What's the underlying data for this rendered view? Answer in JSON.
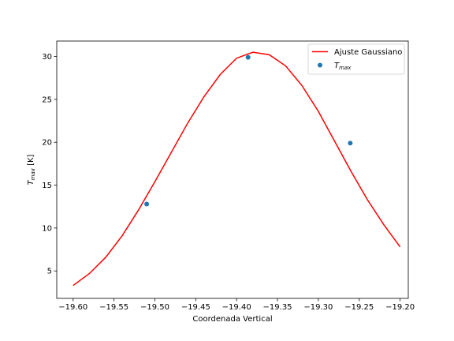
{
  "chart_data": {
    "type": "line",
    "title": "",
    "xlabel": "Coordenada Vertical",
    "ylabel": "T",
    "ylabel_subscript": "max",
    "ylabel_unit": " [K]",
    "xlim": [
      -19.62,
      -19.19
    ],
    "ylim": [
      1.8,
      31.8
    ],
    "x_ticks": [
      -19.6,
      -19.55,
      -19.5,
      -19.45,
      -19.4,
      -19.35,
      -19.3,
      -19.25,
      -19.2
    ],
    "x_tick_labels": [
      "−19.60",
      "−19.55",
      "−19.50",
      "−19.45",
      "−19.40",
      "−19.35",
      "−19.30",
      "−19.25",
      "−19.20"
    ],
    "y_ticks": [
      5,
      10,
      15,
      20,
      25,
      30
    ],
    "y_tick_labels": [
      "5",
      "10",
      "15",
      "20",
      "25",
      "30"
    ],
    "grid": false,
    "legend_position": "top-right",
    "series": [
      {
        "name": "Ajuste Gaussiano",
        "kind": "line",
        "color": "#ff0000",
        "x": [
          -19.6,
          -19.58,
          -19.56,
          -19.54,
          -19.52,
          -19.5,
          -19.48,
          -19.46,
          -19.44,
          -19.42,
          -19.4,
          -19.38,
          -19.36,
          -19.34,
          -19.32,
          -19.3,
          -19.28,
          -19.26,
          -19.24,
          -19.22,
          -19.2
        ],
        "y": [
          3.3,
          4.7,
          6.6,
          9.1,
          12.1,
          15.4,
          18.8,
          22.2,
          25.3,
          27.9,
          29.8,
          30.5,
          30.2,
          28.9,
          26.6,
          23.6,
          20.1,
          16.6,
          13.3,
          10.4,
          7.8
        ]
      },
      {
        "name": "T",
        "name_subscript": "max",
        "kind": "scatter",
        "color": "#1f77b4",
        "x": [
          -19.51,
          -19.386,
          -19.261
        ],
        "y": [
          12.8,
          29.9,
          19.9
        ]
      }
    ]
  }
}
